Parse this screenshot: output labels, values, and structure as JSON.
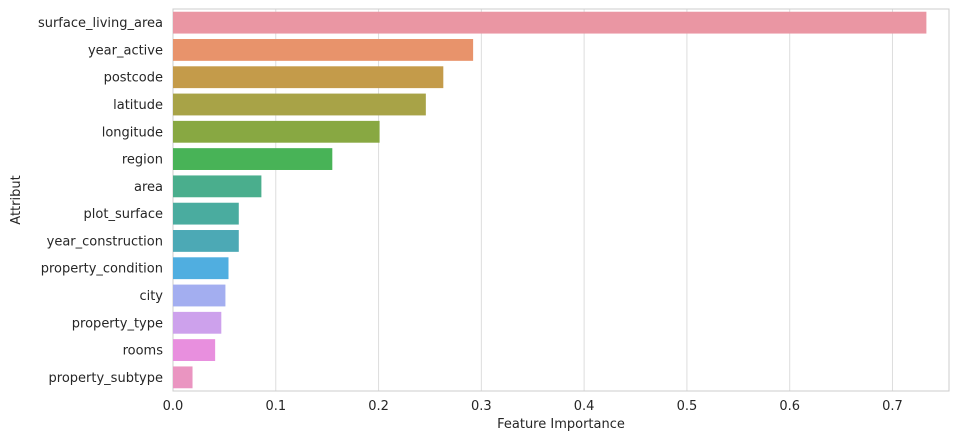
{
  "chart_data": {
    "type": "bar",
    "orientation": "horizontal",
    "categories": [
      "surface_living_area",
      "year_active",
      "postcode",
      "latitude",
      "longitude",
      "region",
      "area",
      "plot_surface",
      "year_construction",
      "property_condition",
      "city",
      "property_type",
      "rooms",
      "property_subtype"
    ],
    "values": [
      0.733,
      0.292,
      0.263,
      0.246,
      0.201,
      0.155,
      0.086,
      0.064,
      0.064,
      0.054,
      0.051,
      0.047,
      0.041,
      0.019
    ],
    "colors": [
      "#ea96a3",
      "#e8936b",
      "#c49b4a",
      "#a8a347",
      "#88a842",
      "#48b357",
      "#4aae8d",
      "#4aac9f",
      "#4ca9b5",
      "#50aee0",
      "#a3aef0",
      "#cda1ec",
      "#e88fde",
      "#ea95c1"
    ],
    "xlabel": "Feature Importance",
    "ylabel": "Attribut",
    "xlim": [
      0,
      0.755
    ],
    "xticks": [
      0.0,
      0.1,
      0.2,
      0.3,
      0.4,
      0.5,
      0.6,
      0.7
    ],
    "xtick_labels": [
      "0.0",
      "0.1",
      "0.2",
      "0.3",
      "0.4",
      "0.5",
      "0.6",
      "0.7"
    ],
    "grid": "vertical"
  }
}
